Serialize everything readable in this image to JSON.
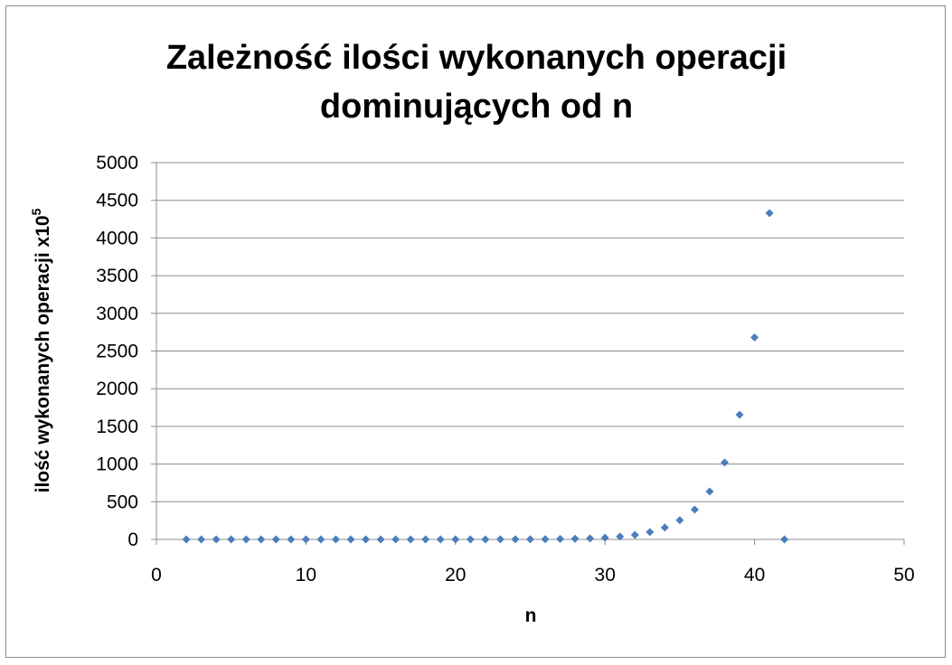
{
  "chart_data": {
    "type": "scatter",
    "title_line1": "Zależność ilości wykonanych operacji",
    "title_line2": "dominujących od n",
    "xlabel": "n",
    "ylabel": "ilość wykonanych operacji x10",
    "ylabel_superscript": "5",
    "xlim": [
      0,
      50
    ],
    "ylim": [
      0,
      5000
    ],
    "x_ticks": [
      0,
      10,
      20,
      30,
      40,
      50
    ],
    "y_ticks": [
      0,
      500,
      1000,
      1500,
      2000,
      2500,
      3000,
      3500,
      4000,
      4500,
      5000
    ],
    "grid": "horizontal",
    "legend": "none",
    "marker": "diamond",
    "marker_color": "#4a7ebb",
    "series": [
      {
        "x": [
          2,
          3,
          4,
          5,
          6,
          7,
          8,
          9,
          10,
          11,
          12,
          13,
          14,
          15,
          16,
          17,
          18,
          19,
          20,
          21,
          22,
          23,
          24,
          25,
          26,
          27,
          28,
          29,
          30,
          31,
          32,
          33,
          34,
          35,
          36,
          37,
          38,
          39,
          40,
          41,
          42
        ],
        "y": [
          0,
          0,
          0,
          0,
          0,
          0,
          0,
          0,
          0,
          0,
          0,
          0,
          0,
          0,
          0,
          0,
          0,
          0.1,
          0.2,
          0.3,
          0.5,
          0.8,
          1.3,
          2.1,
          3.4,
          5.4,
          8.8,
          14,
          23,
          37,
          60,
          97,
          157,
          255,
          395,
          635,
          1020,
          1655,
          2680,
          4330,
          0
        ]
      }
    ]
  }
}
